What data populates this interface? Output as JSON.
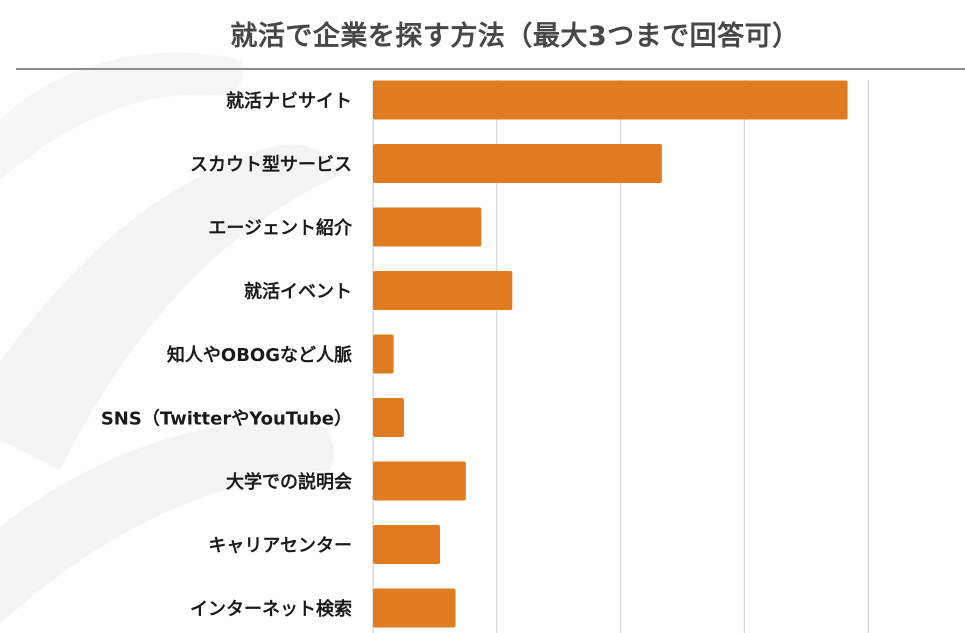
{
  "chart_data": {
    "type": "bar",
    "orientation": "horizontal",
    "title": "就活で企業を探す方法（最大3つまで回答可）",
    "xlabel": "",
    "ylabel": "",
    "categories": [
      "就活ナビサイト",
      "スカウト型サービス",
      "エージェント紹介",
      "就活イベント",
      "知人やOBOGなど人脈",
      "SNS（TwitterやYouTube）",
      "大学での説明会",
      "キャリアセンター",
      "インターネット検索"
    ],
    "values": [
      184,
      112,
      42,
      54,
      8,
      12,
      36,
      26,
      32
    ],
    "xlim": [
      0,
      240
    ],
    "grid": true,
    "legend": "none",
    "bar_color": "#E07B1F"
  }
}
